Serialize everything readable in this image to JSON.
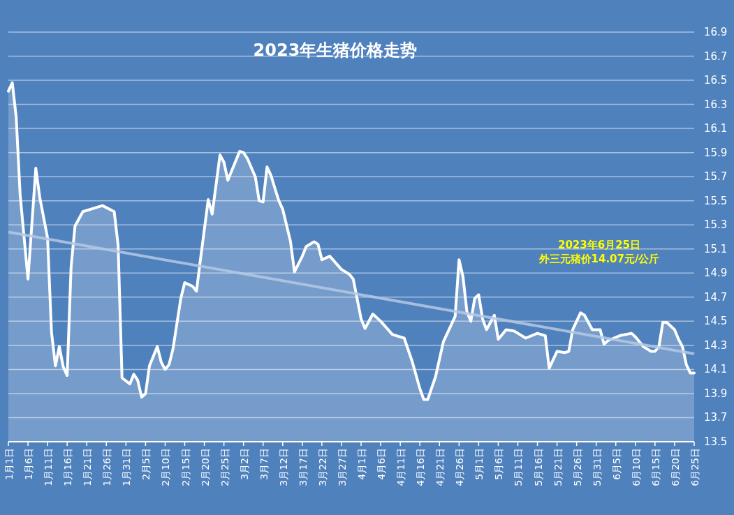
{
  "chart_data": {
    "type": "area",
    "title": "2023年生猪价格走势",
    "annotations": [
      "2023年6月25日",
      "外三元猪价14.07元/公斤"
    ],
    "xlim": [
      "2023-01-01",
      "2023-06-25"
    ],
    "xticks": [
      {
        "value": "2023-01-01",
        "label": "1月1日"
      },
      {
        "value": "2023-01-06",
        "label": "1月6日"
      },
      {
        "value": "2023-01-11",
        "label": "1月11日"
      },
      {
        "value": "2023-01-16",
        "label": "1月16日"
      },
      {
        "value": "2023-01-21",
        "label": "1月21日"
      },
      {
        "value": "2023-01-26",
        "label": "1月26日"
      },
      {
        "value": "2023-01-31",
        "label": "1月31日"
      },
      {
        "value": "2023-02-05",
        "label": "2月5日"
      },
      {
        "value": "2023-02-10",
        "label": "2月10日"
      },
      {
        "value": "2023-02-15",
        "label": "2月15日"
      },
      {
        "value": "2023-02-20",
        "label": "2月20日"
      },
      {
        "value": "2023-02-25",
        "label": "2月25日"
      },
      {
        "value": "2023-03-02",
        "label": "3月2日"
      },
      {
        "value": "2023-03-07",
        "label": "3月7日"
      },
      {
        "value": "2023-03-12",
        "label": "3月12日"
      },
      {
        "value": "2023-03-17",
        "label": "3月17日"
      },
      {
        "value": "2023-03-22",
        "label": "3月22日"
      },
      {
        "value": "2023-03-27",
        "label": "3月27日"
      },
      {
        "value": "2023-04-01",
        "label": "4月1日"
      },
      {
        "value": "2023-04-06",
        "label": "4月6日"
      },
      {
        "value": "2023-04-11",
        "label": "4月11日"
      },
      {
        "value": "2023-04-16",
        "label": "4月16日"
      },
      {
        "value": "2023-04-21",
        "label": "4月21日"
      },
      {
        "value": "2023-04-26",
        "label": "4月26日"
      },
      {
        "value": "2023-05-01",
        "label": "5月1日"
      },
      {
        "value": "2023-05-06",
        "label": "5月6日"
      },
      {
        "value": "2023-05-11",
        "label": "5月11日"
      },
      {
        "value": "2023-05-16",
        "label": "5月16日"
      },
      {
        "value": "2023-05-21",
        "label": "5月21日"
      },
      {
        "value": "2023-05-26",
        "label": "5月26日"
      },
      {
        "value": "2023-05-31",
        "label": "5月31日"
      },
      {
        "value": "2023-06-05",
        "label": "6月5日"
      },
      {
        "value": "2023-06-10",
        "label": "6月10日"
      },
      {
        "value": "2023-06-15",
        "label": "6月15日"
      },
      {
        "value": "2023-06-20",
        "label": "6月20日"
      },
      {
        "value": "2023-06-25",
        "label": "6月25日"
      }
    ],
    "ylim": [
      13.5,
      16.9
    ],
    "yticks": [
      13.5,
      13.7,
      13.9,
      14.1,
      14.3,
      14.5,
      14.7,
      14.9,
      15.1,
      15.3,
      15.5,
      15.7,
      15.9,
      16.1,
      16.3,
      16.5,
      16.7,
      16.9
    ],
    "grid": "y",
    "series": [
      {
        "color": "#ffffff",
        "x": [
          "2023-01-01",
          "2023-01-02",
          "2023-01-03",
          "2023-01-04",
          "2023-01-06",
          "2023-01-08",
          "2023-01-09",
          "2023-01-11",
          "2023-01-12",
          "2023-01-13",
          "2023-01-14",
          "2023-01-15",
          "2023-01-16",
          "2023-01-17",
          "2023-01-18",
          "2023-01-20",
          "2023-01-23",
          "2023-01-25",
          "2023-01-28",
          "2023-01-29",
          "2023-01-30",
          "2023-02-01",
          "2023-02-02",
          "2023-02-03",
          "2023-02-04",
          "2023-02-05",
          "2023-02-06",
          "2023-02-08",
          "2023-02-09",
          "2023-02-10",
          "2023-02-11",
          "2023-02-12",
          "2023-02-14",
          "2023-02-15",
          "2023-02-17",
          "2023-02-18",
          "2023-02-19",
          "2023-02-21",
          "2023-02-22",
          "2023-02-24",
          "2023-02-25",
          "2023-02-26",
          "2023-02-28",
          "2023-03-01",
          "2023-03-02",
          "2023-03-03",
          "2023-03-05",
          "2023-03-06",
          "2023-03-07",
          "2023-03-08",
          "2023-03-09",
          "2023-03-11",
          "2023-03-12",
          "2023-03-14",
          "2023-03-15",
          "2023-03-17",
          "2023-03-18",
          "2023-03-20",
          "2023-03-21",
          "2023-03-22",
          "2023-03-24",
          "2023-03-27",
          "2023-03-29",
          "2023-03-30",
          "2023-04-01",
          "2023-04-02",
          "2023-04-04",
          "2023-04-06",
          "2023-04-09",
          "2023-04-12",
          "2023-04-14",
          "2023-04-16",
          "2023-04-17",
          "2023-04-18",
          "2023-04-20",
          "2023-04-22",
          "2023-04-23",
          "2023-04-25",
          "2023-04-26",
          "2023-04-27",
          "2023-04-28",
          "2023-04-29",
          "2023-04-30",
          "2023-05-01",
          "2023-05-02",
          "2023-05-03",
          "2023-05-05",
          "2023-05-06",
          "2023-05-08",
          "2023-05-10",
          "2023-05-13",
          "2023-05-16",
          "2023-05-18",
          "2023-05-19",
          "2023-05-21",
          "2023-05-23",
          "2023-05-24",
          "2023-05-25",
          "2023-05-27",
          "2023-05-28",
          "2023-05-30",
          "2023-06-01",
          "2023-06-02",
          "2023-06-03",
          "2023-06-06",
          "2023-06-09",
          "2023-06-10",
          "2023-06-12",
          "2023-06-14",
          "2023-06-15",
          "2023-06-16",
          "2023-06-17",
          "2023-06-18",
          "2023-06-20",
          "2023-06-21",
          "2023-06-22",
          "2023-06-23",
          "2023-06-24",
          "2023-06-25"
        ],
        "values": [
          16.41,
          16.48,
          16.19,
          15.55,
          14.85,
          15.77,
          15.53,
          15.19,
          14.41,
          14.13,
          14.29,
          14.12,
          14.05,
          14.95,
          15.29,
          15.41,
          15.44,
          15.46,
          15.41,
          15.13,
          14.03,
          13.98,
          14.06,
          14.01,
          13.87,
          13.9,
          14.13,
          14.29,
          14.16,
          14.1,
          14.14,
          14.27,
          14.69,
          14.82,
          14.79,
          14.75,
          15.01,
          15.51,
          15.39,
          15.88,
          15.82,
          15.67,
          15.83,
          15.91,
          15.9,
          15.85,
          15.7,
          15.5,
          15.49,
          15.78,
          15.71,
          15.5,
          15.43,
          15.16,
          14.91,
          15.04,
          15.12,
          15.16,
          15.14,
          15.01,
          15.04,
          14.93,
          14.89,
          14.85,
          14.52,
          14.44,
          14.56,
          14.5,
          14.39,
          14.36,
          14.17,
          13.94,
          13.85,
          13.85,
          14.04,
          14.33,
          14.4,
          14.54,
          15.01,
          14.87,
          14.58,
          14.5,
          14.69,
          14.72,
          14.52,
          14.43,
          14.55,
          14.35,
          14.43,
          14.42,
          14.36,
          14.4,
          14.38,
          14.11,
          14.25,
          14.24,
          14.25,
          14.43,
          14.57,
          14.55,
          14.43,
          14.43,
          14.31,
          14.34,
          14.38,
          14.4,
          14.37,
          14.29,
          14.25,
          14.25,
          14.29,
          14.49,
          14.49,
          14.43,
          14.35,
          14.29,
          14.14,
          14.07,
          14.07
        ]
      },
      {
        "type": "line",
        "color": "#b4c8e4",
        "x": [
          "2023-01-01",
          "2023-06-25"
        ],
        "values": [
          15.24,
          14.23
        ]
      }
    ]
  }
}
